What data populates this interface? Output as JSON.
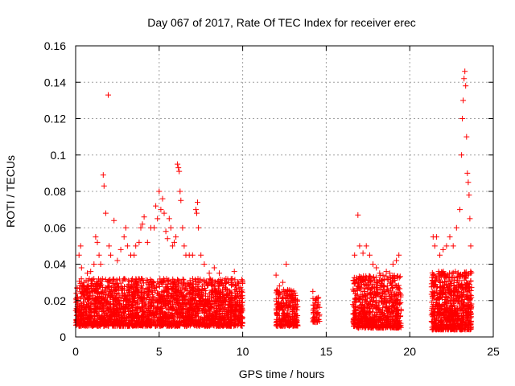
{
  "chart_data": {
    "type": "scatter",
    "title": "Day 067 of 2017, Rate Of TEC Index for receiver erec",
    "xlabel": "GPS time / hours",
    "ylabel": "ROTI / TECUs",
    "xlim": [
      0,
      25
    ],
    "ylim": [
      0,
      0.16
    ],
    "xticks": [
      0,
      5,
      10,
      15,
      20,
      25
    ],
    "xtick_labels": [
      "0",
      "5",
      "10",
      "15",
      "20",
      "25"
    ],
    "yticks": [
      0,
      0.02,
      0.04,
      0.06,
      0.08,
      0.1,
      0.12,
      0.14,
      0.16
    ],
    "ytick_labels": [
      "0",
      "0.02",
      "0.04",
      "0.06",
      "0.08",
      "0.1",
      "0.12",
      "0.14",
      "0.16"
    ],
    "grid": true,
    "marker": "plus",
    "marker_color": "#ff0000",
    "series": [
      {
        "points": [
          [
            0.1,
            0.015
          ],
          [
            0.2,
            0.045
          ],
          [
            0.3,
            0.05
          ],
          [
            0.35,
            0.038
          ],
          [
            0.5,
            0.03
          ],
          [
            0.7,
            0.035
          ],
          [
            0.9,
            0.036
          ],
          [
            1.1,
            0.04
          ],
          [
            1.2,
            0.055
          ],
          [
            1.3,
            0.052
          ],
          [
            1.4,
            0.045
          ],
          [
            1.5,
            0.04
          ],
          [
            1.65,
            0.089
          ],
          [
            1.7,
            0.083
          ],
          [
            1.8,
            0.068
          ],
          [
            1.95,
            0.133
          ],
          [
            2.0,
            0.05
          ],
          [
            2.1,
            0.045
          ],
          [
            2.3,
            0.064
          ],
          [
            2.5,
            0.042
          ],
          [
            2.7,
            0.048
          ],
          [
            2.9,
            0.055
          ],
          [
            3.0,
            0.06
          ],
          [
            3.1,
            0.05
          ],
          [
            3.3,
            0.045
          ],
          [
            3.5,
            0.045
          ],
          [
            3.6,
            0.05
          ],
          [
            3.8,
            0.052
          ],
          [
            3.9,
            0.06
          ],
          [
            4.0,
            0.062
          ],
          [
            4.1,
            0.066
          ],
          [
            4.3,
            0.052
          ],
          [
            4.5,
            0.06
          ],
          [
            4.7,
            0.06
          ],
          [
            4.8,
            0.072
          ],
          [
            4.9,
            0.065
          ],
          [
            5.0,
            0.08
          ],
          [
            5.1,
            0.07
          ],
          [
            5.2,
            0.076
          ],
          [
            5.3,
            0.068
          ],
          [
            5.4,
            0.058
          ],
          [
            5.5,
            0.054
          ],
          [
            5.6,
            0.065
          ],
          [
            5.7,
            0.06
          ],
          [
            5.8,
            0.05
          ],
          [
            5.9,
            0.052
          ],
          [
            6.0,
            0.055
          ],
          [
            6.1,
            0.095
          ],
          [
            6.15,
            0.093
          ],
          [
            6.2,
            0.091
          ],
          [
            6.25,
            0.08
          ],
          [
            6.3,
            0.075
          ],
          [
            6.4,
            0.06
          ],
          [
            6.5,
            0.05
          ],
          [
            6.6,
            0.045
          ],
          [
            6.8,
            0.045
          ],
          [
            7.0,
            0.045
          ],
          [
            7.2,
            0.07
          ],
          [
            7.25,
            0.068
          ],
          [
            7.3,
            0.074
          ],
          [
            7.35,
            0.06
          ],
          [
            7.5,
            0.045
          ],
          [
            7.7,
            0.04
          ],
          [
            8.0,
            0.035
          ],
          [
            8.3,
            0.038
          ],
          [
            8.6,
            0.035
          ],
          [
            9.0,
            0.032
          ],
          [
            9.3,
            0.03
          ],
          [
            9.5,
            0.036
          ],
          [
            9.7,
            0.03
          ],
          [
            9.9,
            0.025
          ],
          [
            12.0,
            0.034
          ],
          [
            12.2,
            0.028
          ],
          [
            12.4,
            0.03
          ],
          [
            12.6,
            0.04
          ],
          [
            12.8,
            0.025
          ],
          [
            13.0,
            0.022
          ],
          [
            13.2,
            0.018
          ],
          [
            14.2,
            0.025
          ],
          [
            14.35,
            0.02
          ],
          [
            14.5,
            0.018
          ],
          [
            16.7,
            0.045
          ],
          [
            16.9,
            0.067
          ],
          [
            17.0,
            0.05
          ],
          [
            17.2,
            0.046
          ],
          [
            17.4,
            0.05
          ],
          [
            17.6,
            0.045
          ],
          [
            17.8,
            0.04
          ],
          [
            18.0,
            0.038
          ],
          [
            18.2,
            0.035
          ],
          [
            18.4,
            0.034
          ],
          [
            18.6,
            0.036
          ],
          [
            18.8,
            0.035
          ],
          [
            19.0,
            0.04
          ],
          [
            19.2,
            0.042
          ],
          [
            19.35,
            0.045
          ],
          [
            21.4,
            0.055
          ],
          [
            21.5,
            0.05
          ],
          [
            21.6,
            0.055
          ],
          [
            21.8,
            0.045
          ],
          [
            22.0,
            0.048
          ],
          [
            22.2,
            0.05
          ],
          [
            22.4,
            0.055
          ],
          [
            22.6,
            0.05
          ],
          [
            22.8,
            0.06
          ],
          [
            23.0,
            0.07
          ],
          [
            23.1,
            0.1
          ],
          [
            23.15,
            0.12
          ],
          [
            23.2,
            0.13
          ],
          [
            23.25,
            0.142
          ],
          [
            23.3,
            0.146
          ],
          [
            23.35,
            0.138
          ],
          [
            23.4,
            0.11
          ],
          [
            23.45,
            0.09
          ],
          [
            23.5,
            0.085
          ],
          [
            23.55,
            0.078
          ],
          [
            23.6,
            0.065
          ],
          [
            23.65,
            0.05
          ]
        ],
        "bands": [
          {
            "x": [
              0.0,
              10.0
            ],
            "ylow": 0.006,
            "yhigh": 0.032,
            "n": 2400
          },
          {
            "x": [
              12.0,
              13.3
            ],
            "ylow": 0.006,
            "yhigh": 0.026,
            "n": 260
          },
          {
            "x": [
              14.2,
              14.6
            ],
            "ylow": 0.008,
            "yhigh": 0.022,
            "n": 50
          },
          {
            "x": [
              16.6,
              19.5
            ],
            "ylow": 0.005,
            "yhigh": 0.034,
            "n": 700
          },
          {
            "x": [
              21.3,
              23.7
            ],
            "ylow": 0.004,
            "yhigh": 0.036,
            "n": 700
          }
        ]
      }
    ]
  }
}
